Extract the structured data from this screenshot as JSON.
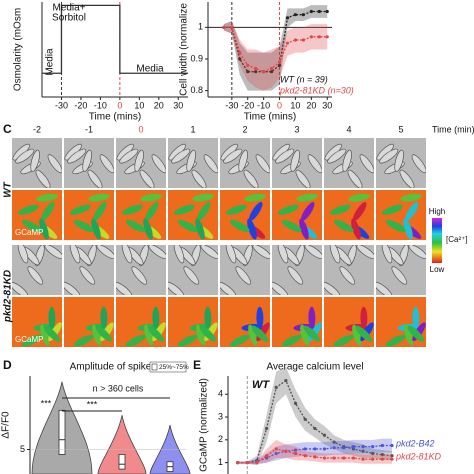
{
  "panel_labels": [
    "C",
    "D",
    "E"
  ],
  "chart_data": [
    {
      "type": "line",
      "y_label": "Osmolarity (mOsm",
      "x_label": "Time (mins)",
      "annotations": [
        "Media+",
        "Sorbitol",
        "Media",
        "Media"
      ],
      "x": [
        -40,
        -30,
        -30,
        0,
        0,
        35
      ],
      "values": [
        0.35,
        0.35,
        1.35,
        1.35,
        0.35,
        0.35
      ],
      "color": "#333333",
      "vlines": [
        -30,
        0
      ],
      "vline_colors": [
        "#333333",
        "#e0474c"
      ],
      "xlim": [
        -40,
        35
      ],
      "ylim": [
        0,
        1.4
      ],
      "xticks": [
        -30,
        -20,
        -10,
        0,
        10,
        20,
        30
      ]
    },
    {
      "type": "line",
      "y_label": "Cell width (normalize",
      "x_label": "Time (mins)",
      "x": [
        -35,
        -30,
        -25,
        -20,
        -15,
        -10,
        -5,
        0,
        5,
        10,
        15,
        20,
        25,
        30
      ],
      "series": [
        {
          "name": "WT (n = 39)",
          "color": "#222222",
          "values": [
            1.0,
            1.0,
            0.9,
            0.86,
            0.86,
            0.86,
            0.86,
            0.88,
            1.03,
            1.04,
            1.04,
            1.05,
            1.05,
            1.05
          ],
          "error": [
            0.01,
            0.02,
            0.05,
            0.06,
            0.06,
            0.06,
            0.06,
            0.06,
            0.03,
            0.02,
            0.02,
            0.02,
            0.02,
            0.02
          ]
        },
        {
          "name": "pkd2-81KD (n=30)",
          "color": "#e0474c",
          "values": [
            1.0,
            1.0,
            0.92,
            0.88,
            0.87,
            0.86,
            0.87,
            0.89,
            0.95,
            0.96,
            0.96,
            0.97,
            0.97,
            0.97
          ],
          "error": [
            0.01,
            0.02,
            0.04,
            0.05,
            0.06,
            0.06,
            0.06,
            0.05,
            0.04,
            0.04,
            0.04,
            0.04,
            0.04,
            0.04
          ]
        }
      ],
      "hline": 1.0,
      "vlines": [
        -30,
        0
      ],
      "vline_colors": [
        "#333333",
        "#e0474c"
      ],
      "xlim": [
        -45,
        33
      ],
      "ylim": [
        0.78,
        1.08
      ],
      "xticks": [
        -30,
        -20,
        -10,
        0,
        10,
        20,
        30
      ],
      "yticks": [
        0.8,
        0.9,
        1.0
      ]
    },
    {
      "type": "violin",
      "title": "Amplitude of spikes",
      "y_label": "ΔF/F0",
      "annotations": [
        "n > 360 cells",
        "***",
        "***"
      ],
      "legend": "25%~75%",
      "series": [
        {
          "color": "#a9a9a9",
          "max": 18.8,
          "q1": 4,
          "median": 7,
          "q3": 13
        },
        {
          "color": "#f08a8c",
          "max": 12,
          "q1": 1,
          "median": 2,
          "q3": 4
        },
        {
          "color": "#8f8ff0",
          "max": 10,
          "q1": 0.5,
          "median": 1.5,
          "q3": 2.5
        }
      ],
      "ylim": [
        0,
        20
      ],
      "yticks": [
        5
      ]
    },
    {
      "type": "line",
      "title": "Average calcium level",
      "y_label": "GCaMP (normalized)",
      "x": [
        0,
        1,
        2,
        3,
        4,
        5,
        6,
        7,
        8,
        9,
        10,
        11,
        12,
        13,
        14,
        15,
        16
      ],
      "series": [
        {
          "name": "WT",
          "color": "#555555",
          "values": [
            1,
            1,
            1.1,
            2.5,
            4.3,
            4.6,
            3.6,
            2.9,
            2.5,
            2.2,
            1.9,
            1.7,
            1.6,
            1.5,
            1.4,
            1.35,
            1.3
          ],
          "error": [
            0.05,
            0.05,
            0.2,
            0.6,
            0.7,
            0.6,
            0.6,
            0.5,
            0.4,
            0.4,
            0.3,
            0.3,
            0.3,
            0.3,
            0.2,
            0.2,
            0.2
          ]
        },
        {
          "name": "pkd2-B42",
          "color": "#4a55d8",
          "values": [
            1,
            1,
            1.05,
            1.2,
            1.4,
            1.5,
            1.55,
            1.6,
            1.6,
            1.6,
            1.65,
            1.65,
            1.7,
            1.7,
            1.7,
            1.75,
            1.75
          ],
          "error": [
            0.05,
            0.05,
            0.1,
            0.2,
            0.3,
            0.3,
            0.3,
            0.3,
            0.3,
            0.3,
            0.3,
            0.3,
            0.3,
            0.3,
            0.3,
            0.3,
            0.3
          ]
        },
        {
          "name": "pkd2-81KD",
          "color": "#e0474c",
          "values": [
            1,
            1,
            1,
            1.3,
            1.6,
            1.5,
            1.4,
            1.3,
            1.25,
            1.2,
            1.2,
            1.2,
            1.2,
            1.15,
            1.15,
            1.15,
            1.15
          ],
          "error": [
            0.05,
            0.05,
            0.1,
            0.3,
            0.4,
            0.3,
            0.3,
            0.2,
            0.2,
            0.2,
            0.2,
            0.2,
            0.2,
            0.2,
            0.2,
            0.2,
            0.2
          ]
        }
      ],
      "vlines": [
        1
      ],
      "vline_colors": [
        "#999999"
      ],
      "xlim": [
        -1,
        16
      ],
      "ylim": [
        0.5,
        4.8
      ],
      "yticks": [
        1,
        2,
        3,
        4
      ]
    }
  ],
  "panel_c": {
    "time_labels": [
      "-2",
      "-1",
      "0",
      "1",
      "2",
      "3",
      "4",
      "5"
    ],
    "time_unit": "Time (min)",
    "row_labels": [
      "WT",
      "pkd2-81KD"
    ],
    "channel_label": "GCaMP",
    "colorbar": {
      "high": "High",
      "title": "[Ca²⁺]",
      "low": "Low"
    }
  }
}
